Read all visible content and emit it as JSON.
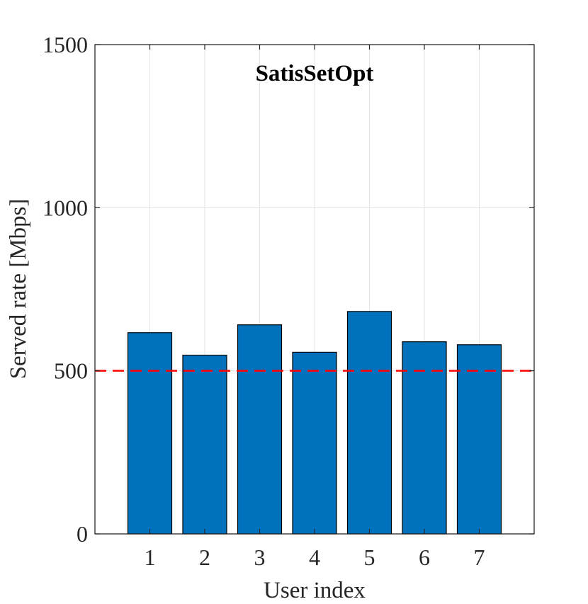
{
  "chart_data": {
    "type": "bar",
    "title": "SatisSetOpt",
    "xlabel": "User index",
    "ylabel": "Served rate [Mbps]",
    "categories": [
      "1",
      "2",
      "3",
      "4",
      "5",
      "6",
      "7"
    ],
    "values": [
      617,
      548,
      641,
      557,
      682,
      589,
      580
    ],
    "ylim": [
      0,
      1500
    ],
    "xlim": [
      0,
      8
    ],
    "yticks": [
      0,
      500,
      1000,
      1500
    ],
    "ytick_labels": [
      "0",
      "500",
      "1000",
      "1500"
    ],
    "grid": true,
    "reference_line": {
      "y": 500,
      "style": "dashed",
      "color": "#ff0000"
    },
    "bar_color": "#0072bd",
    "bar_edge_color": "#000000"
  }
}
